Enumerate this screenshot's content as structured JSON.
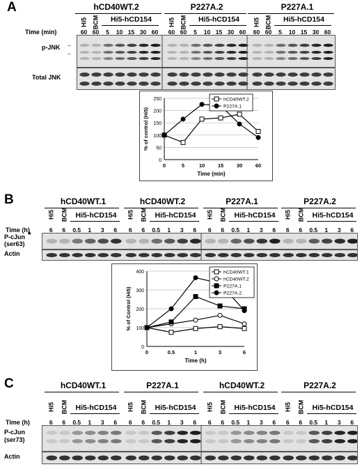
{
  "panelA": {
    "letter": "A",
    "groups": [
      "hCD40WT.2",
      "P227A.2",
      "P227A.1"
    ],
    "sublabels": [
      "Hi5",
      "BCM",
      "Hi5-hCD154"
    ],
    "time_label": "Time (min)",
    "times": [
      "60",
      "60",
      "5",
      "10",
      "15",
      "30",
      "60"
    ],
    "blot_labels": [
      "p-JNK",
      "Total JNK"
    ],
    "chart_data": {
      "type": "line",
      "x": [
        "0",
        "5",
        "10",
        "15",
        "30",
        "60"
      ],
      "series": [
        {
          "name": "hCD40WT.2",
          "values": [
            100,
            70,
            165,
            170,
            185,
            115
          ],
          "marker": "open-square"
        },
        {
          "name": "P227A.1",
          "values": [
            100,
            165,
            225,
            220,
            145,
            90
          ],
          "marker": "filled-circle"
        }
      ],
      "xlabel": "Time (min)",
      "ylabel": "% of control (Hi5)",
      "ylim": [
        0,
        250
      ],
      "yticks": [
        0,
        50,
        100,
        150,
        200,
        250
      ],
      "legend": "top-right"
    }
  },
  "panelB": {
    "letter": "B",
    "groups": [
      "hCD40WT.1",
      "hCD40WT.2",
      "P227A.1",
      "P227A.2"
    ],
    "sublabels": [
      "Hi5",
      "BCM",
      "Hi5-hCD154"
    ],
    "time_label": "Time (h)",
    "times": [
      "6",
      "6",
      "0.5",
      "1",
      "3",
      "6"
    ],
    "blot_labels": [
      "P-cJun\n(ser63)",
      "Actin"
    ],
    "star": "*",
    "chart_data": {
      "type": "line",
      "x": [
        "0",
        "0.5",
        "1",
        "3",
        "6"
      ],
      "series": [
        {
          "name": "hCD40WT.1",
          "values": [
            100,
            75,
            95,
            105,
            95
          ],
          "marker": "open-square"
        },
        {
          "name": "hCD40WT.2",
          "values": [
            100,
            120,
            140,
            165,
            120
          ],
          "marker": "open-circle"
        },
        {
          "name": "P227A.1",
          "values": [
            100,
            130,
            265,
            215,
            200
          ],
          "marker": "filled-square"
        },
        {
          "name": "P227A.2",
          "values": [
            100,
            200,
            365,
            335,
            190
          ],
          "marker": "filled-circle"
        }
      ],
      "xlabel": "Time (h)",
      "ylabel": "% of Control (Hi5)",
      "ylim": [
        0,
        400
      ],
      "yticks": [
        0,
        100,
        200,
        300,
        400
      ],
      "legend": "top-right"
    }
  },
  "panelC": {
    "letter": "C",
    "groups": [
      "hCD40WT.1",
      "P227A.1",
      "hCD40WT.2",
      "P227A.2"
    ],
    "sublabels": [
      "Hi5",
      "BCM",
      "Hi5-hCD154"
    ],
    "time_label": "Time (h)",
    "times": [
      "6",
      "6",
      "0.5",
      "1",
      "3",
      "6"
    ],
    "blot_labels": [
      "P-cJun\n(ser73)",
      "Actin"
    ]
  }
}
